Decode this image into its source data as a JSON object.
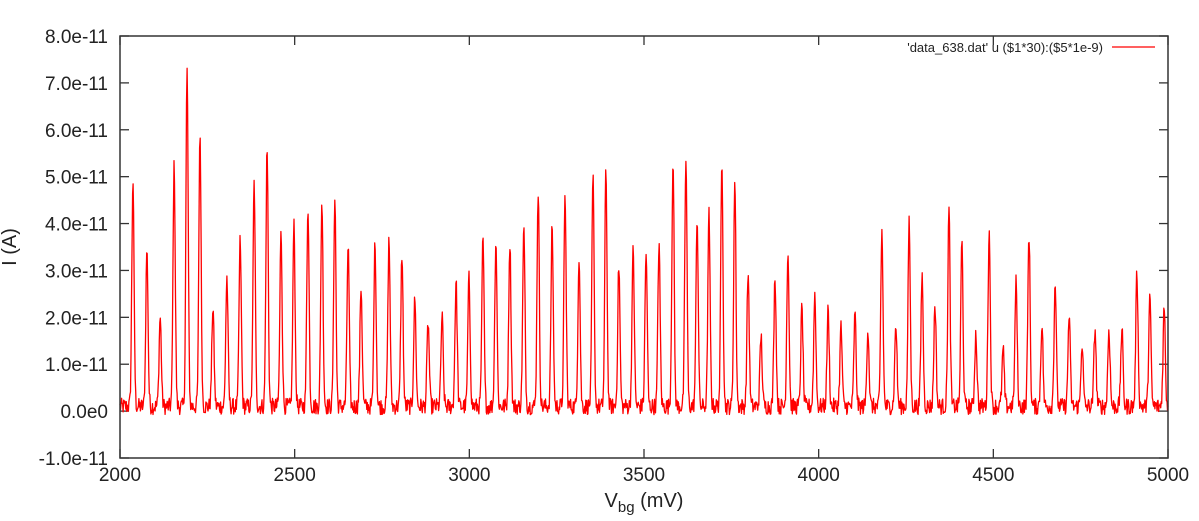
{
  "chart_data": {
    "type": "line",
    "title": "",
    "xlabel": "V",
    "xlabel_sub": "bg",
    "xlabel_unit": " (mV)",
    "ylabel": "I (A)",
    "xlim": [
      2000,
      5000
    ],
    "ylim": [
      -1e-11,
      8e-11
    ],
    "xticks": [
      2000,
      2500,
      3000,
      3500,
      4000,
      4500,
      5000
    ],
    "xtick_labels": [
      "2000",
      "2500",
      "3000",
      "3500",
      "4000",
      "4500",
      "5000"
    ],
    "yticks": [
      8e-11,
      7e-11,
      6e-11,
      5e-11,
      4e-11,
      3e-11,
      2e-11,
      1e-11,
      0,
      -1e-11
    ],
    "ytick_labels": [
      "8.0e-11",
      "7.0e-11",
      "6.0e-11",
      "5.0e-11",
      "4.0e-11",
      "3.0e-11",
      "2.0e-11",
      "1.0e-11",
      "0.0e0",
      "-1.0e-11"
    ],
    "grid": false,
    "legend_position": "top-right",
    "series": [
      {
        "name": "'data_638.dat' u ($1*30):($5*1e-9)",
        "color": "#ff0000",
        "baseline": 1e-12,
        "peak_x_mV": [
          2037,
          2077,
          2115,
          2155,
          2192,
          2229,
          2266,
          2306,
          2344,
          2384,
          2421,
          2461,
          2498,
          2538,
          2578,
          2615,
          2653,
          2690,
          2730,
          2770,
          2807,
          2844,
          2882,
          2922,
          2962,
          2999,
          3039,
          3076,
          3116,
          3156,
          3197,
          3237,
          3274,
          3314,
          3354,
          3391,
          3428,
          3469,
          3506,
          3543,
          3583,
          3620,
          3652,
          3686,
          3723,
          3760,
          3798,
          3835,
          3875,
          3912,
          3952,
          3989,
          4027,
          4064,
          4104,
          4141,
          4181,
          4221,
          4259,
          4296,
          4333,
          4373,
          4410,
          4450,
          4488,
          4528,
          4565,
          4602,
          4639,
          4677,
          4717,
          4754,
          4791,
          4831,
          4868,
          4911,
          4948,
          4989
        ],
        "peak_I_e-11": [
          4.95,
          3.45,
          2.0,
          5.25,
          7.25,
          5.9,
          2.2,
          2.85,
          3.65,
          4.85,
          5.6,
          3.8,
          3.95,
          4.4,
          4.45,
          4.55,
          3.5,
          2.65,
          3.6,
          3.65,
          3.35,
          2.4,
          1.9,
          2.0,
          2.75,
          2.85,
          3.65,
          3.65,
          3.6,
          3.9,
          4.7,
          3.95,
          4.6,
          3.3,
          4.95,
          5.1,
          3.1,
          3.45,
          3.4,
          3.6,
          5.35,
          5.4,
          4.15,
          4.2,
          5.35,
          4.9,
          2.95,
          1.6,
          2.9,
          3.45,
          2.2,
          2.5,
          2.15,
          1.8,
          2.05,
          1.75,
          3.85,
          1.85,
          4.0,
          2.9,
          2.3,
          4.3,
          3.6,
          1.65,
          3.85,
          1.3,
          2.75,
          3.8,
          1.85,
          2.75,
          2.05,
          1.45,
          1.75,
          1.75,
          1.75,
          2.95,
          2.45,
          2.2
        ]
      }
    ]
  }
}
